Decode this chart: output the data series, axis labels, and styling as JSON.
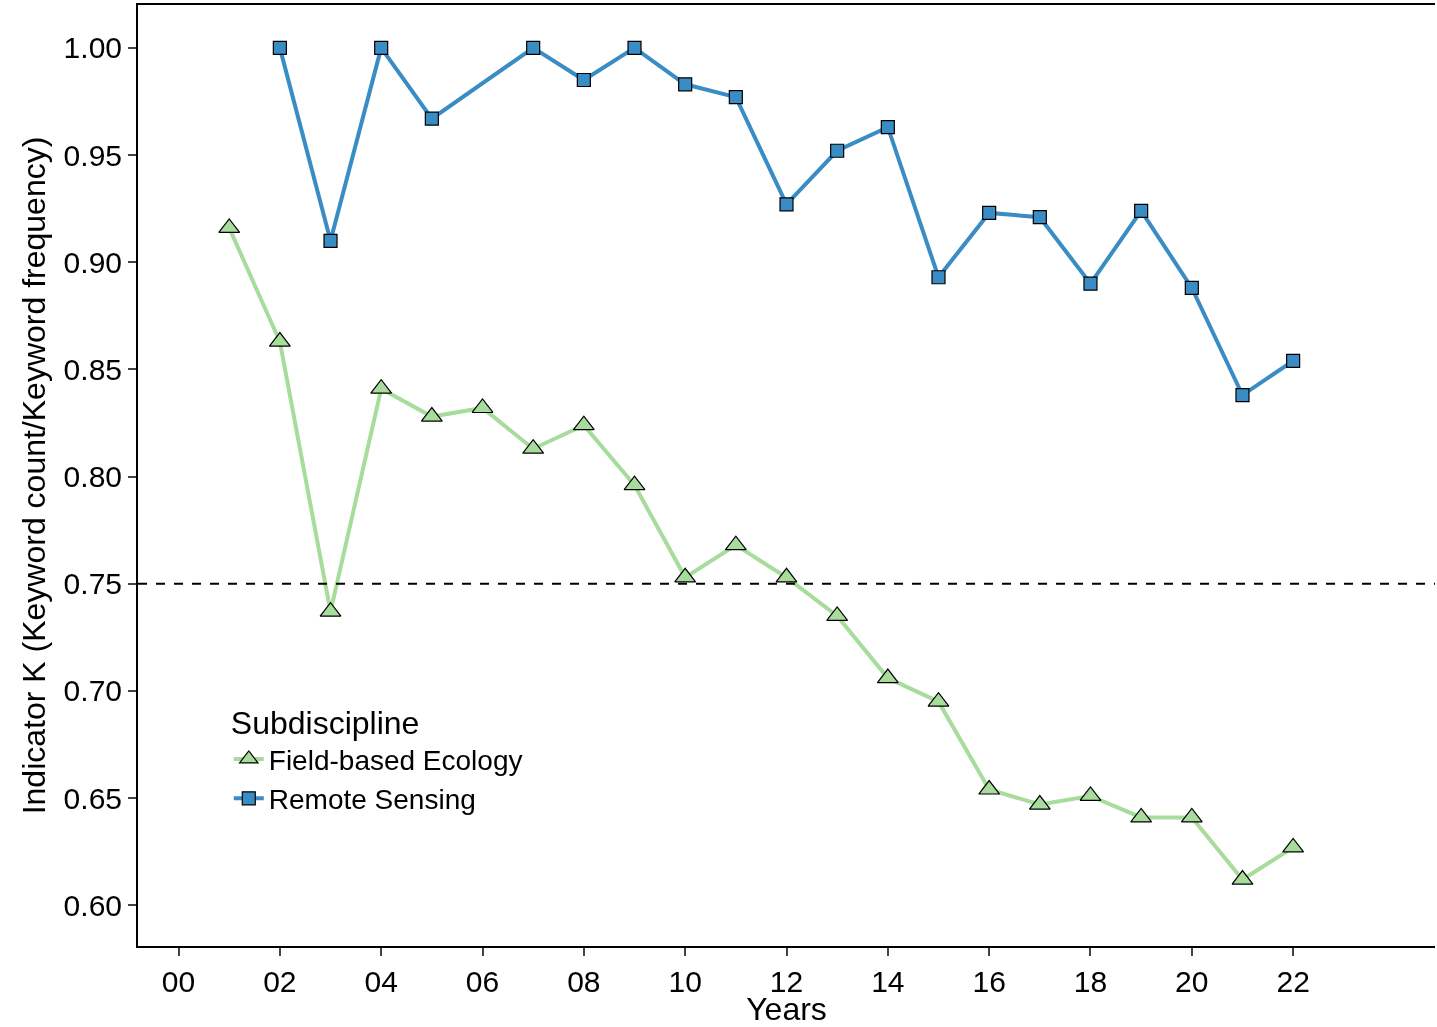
{
  "chart_data": {
    "type": "line",
    "xlabel": "Years",
    "ylabel": "Indicator K (Keyword count/Keyword frequency)",
    "legend_title": "Subdiscipline",
    "legend": "bottom left",
    "grid": false,
    "xlim": [
      -0.8,
      24.8
    ],
    "xticks": [
      {
        "value": 0,
        "label": "00"
      },
      {
        "value": 2,
        "label": "02"
      },
      {
        "value": 4,
        "label": "04"
      },
      {
        "value": 6,
        "label": "06"
      },
      {
        "value": 8,
        "label": "08"
      },
      10,
      12,
      14,
      16,
      18,
      20,
      22
    ],
    "ylim": [
      0.581,
      1.02
    ],
    "yticks": [
      {
        "value": 0.6,
        "label": "0.60"
      },
      0.65,
      {
        "value": 0.7,
        "label": "0.70"
      },
      0.75,
      {
        "value": 0.8,
        "label": "0.80"
      },
      0.85,
      {
        "value": 0.9,
        "label": "0.90"
      },
      0.95,
      {
        "value": 1.0,
        "label": "1.00"
      }
    ],
    "series": [
      {
        "name": "Field-based Ecology",
        "color": "#a8dc9c",
        "marker": "triangle",
        "line_style": "solid",
        "x": [
          1,
          2,
          3,
          4,
          5,
          6,
          7,
          8,
          9,
          10,
          11,
          12,
          13,
          14,
          15,
          16,
          17,
          18,
          19,
          20,
          21,
          22
        ],
        "values": [
          0.916,
          0.863,
          0.737,
          0.841,
          0.828,
          0.832,
          0.813,
          0.824,
          0.796,
          0.753,
          0.768,
          0.753,
          0.735,
          0.706,
          0.695,
          0.654,
          0.647,
          0.651,
          0.641,
          0.641,
          0.612,
          0.627
        ]
      },
      {
        "name": "Remote Sensing",
        "color": "#3a8cc4",
        "marker": "square",
        "line_style": "solid",
        "x": [
          2,
          3,
          4,
          5,
          7,
          8,
          9,
          10,
          11,
          12,
          13,
          14,
          15,
          16,
          17,
          18,
          19,
          20,
          21,
          22
        ],
        "values": [
          1.0,
          0.91,
          1.0,
          0.967,
          1.0,
          0.985,
          1.0,
          0.983,
          0.977,
          0.927,
          0.952,
          0.963,
          0.893,
          0.923,
          0.921,
          0.89,
          0.924,
          0.888,
          0.838,
          0.854
        ]
      }
    ],
    "ref_lines": [
      {
        "axis": "y",
        "value": 0.75,
        "color": "#000000",
        "line_style": "dashed"
      }
    ]
  }
}
